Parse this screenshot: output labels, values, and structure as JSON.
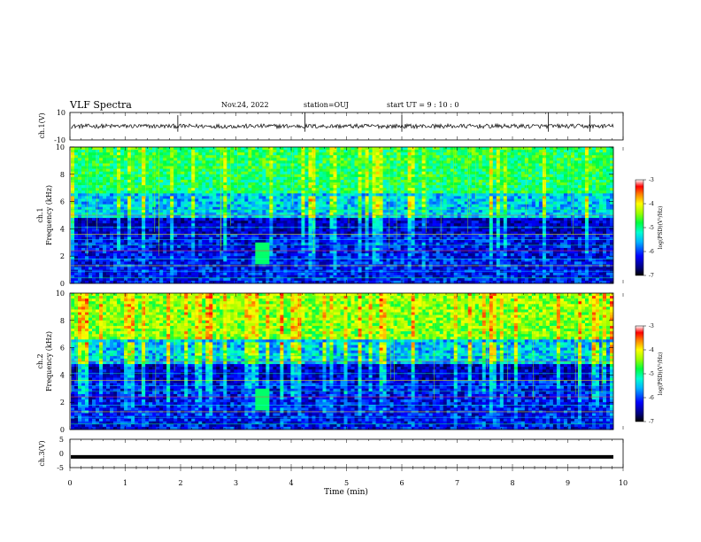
{
  "header": {
    "title": "VLF Spectra",
    "date": "Nov.24, 2022",
    "station": "station=OUJ",
    "start": "start  UT =   9 : 10 : 0"
  },
  "chart_data": [
    {
      "type": "line",
      "ylabel": "ch.1(V)",
      "xlim": [
        0,
        10
      ],
      "ylim": [
        -10,
        10
      ],
      "yticks": [
        "10",
        "-10"
      ],
      "series": [
        {
          "baseline": 0,
          "spike_x": [
            1.95,
            4.25,
            6.0,
            8.65,
            9.4
          ]
        }
      ]
    },
    {
      "type": "heatmap",
      "ylabel": "ch.1\nFrequency (kHz)",
      "xlim": [
        0,
        10
      ],
      "ylim": [
        0,
        10
      ],
      "yticks": [
        "0",
        "2",
        "4",
        "6",
        "8",
        "10"
      ],
      "colorbar": {
        "label": "log(PSD)(V²/Hz)",
        "range": [
          -7,
          -3
        ],
        "ticks": [
          "-3",
          "-4",
          "-5",
          "-6",
          "-7"
        ]
      }
    },
    {
      "type": "heatmap",
      "ylabel": "ch.2\nFrequency (kHz)",
      "xlim": [
        0,
        10
      ],
      "ylim": [
        0,
        10
      ],
      "yticks": [
        "0",
        "2",
        "4",
        "6",
        "8",
        "10"
      ],
      "colorbar": {
        "label": "log(PSD)(V²/Hz)",
        "range": [
          -7,
          -3
        ],
        "ticks": [
          "-3",
          "-4",
          "-5",
          "-6",
          "-7"
        ]
      }
    },
    {
      "type": "line",
      "ylabel": "ch.3(V)",
      "xlabel": "Time (min)",
      "xlim": [
        0,
        10
      ],
      "ylim": [
        -5,
        5
      ],
      "yticks": [
        "5",
        "0",
        "-5"
      ],
      "xticks": [
        "0",
        "1",
        "2",
        "3",
        "4",
        "5",
        "6",
        "7",
        "8",
        "9",
        "10"
      ],
      "series": [
        {
          "baseline": -1.2
        }
      ]
    }
  ]
}
